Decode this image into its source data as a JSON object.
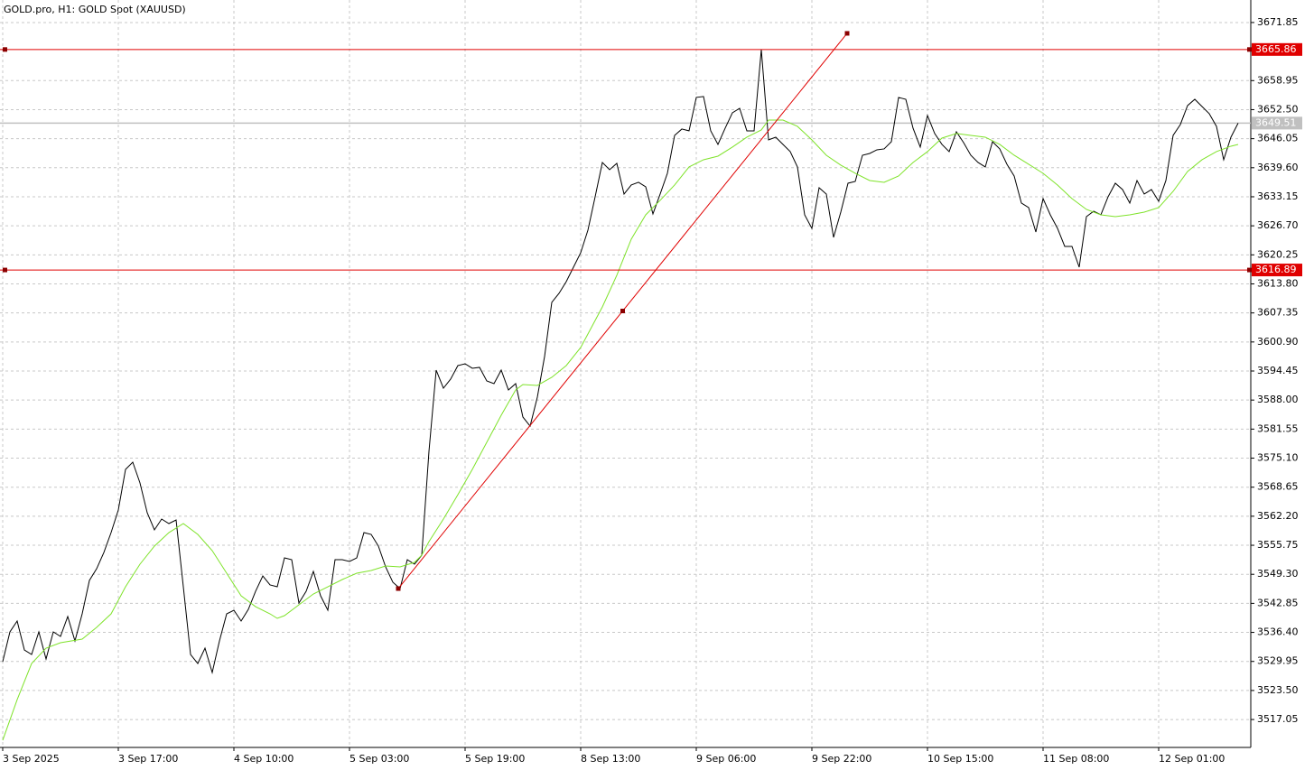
{
  "chart_data": {
    "type": "line",
    "title": "GOLD.pro, H1:  GOLD Spot (XAUUSD)",
    "x": [
      0,
      1,
      2,
      3,
      4,
      5,
      6,
      7,
      8,
      9,
      10,
      11,
      12,
      13,
      14,
      15,
      16,
      17,
      18,
      19,
      20,
      21,
      22,
      23,
      24,
      25,
      26,
      27,
      28,
      29,
      30,
      31,
      32,
      33,
      34,
      35,
      36,
      37,
      38,
      39,
      40,
      41,
      42,
      43,
      44,
      45,
      46,
      47,
      48,
      49,
      50,
      51,
      52,
      53,
      54,
      55,
      56,
      57,
      58,
      59,
      60,
      61,
      62,
      63,
      64,
      65,
      66,
      67,
      68,
      69,
      70,
      71,
      72,
      73,
      74,
      75,
      76,
      77,
      78,
      79,
      80,
      81,
      82,
      83,
      84,
      85,
      86,
      87,
      88,
      89,
      90,
      91,
      92,
      93,
      94,
      95,
      96,
      97,
      98,
      99,
      100,
      101,
      102,
      103,
      104,
      105,
      106,
      107,
      108,
      109,
      110,
      111,
      112,
      113,
      114,
      115,
      116,
      117,
      118,
      119,
      120,
      121,
      122,
      123,
      124,
      125,
      126,
      127,
      128,
      129,
      130,
      131,
      132,
      133,
      134,
      135,
      136,
      137,
      138,
      139,
      140,
      141,
      142,
      143,
      144,
      145,
      146,
      147,
      148,
      149,
      150,
      151,
      152,
      153,
      154,
      155,
      156,
      157,
      158,
      159,
      160,
      161,
      162,
      163,
      164,
      165,
      166,
      167,
      168,
      169,
      170,
      171
    ],
    "series": [
      {
        "color": "#000000",
        "values": [
          3529.89,
          3536.51,
          3538.92,
          3532.5,
          3531.5,
          3536.51,
          3530.49,
          3536.51,
          3535.51,
          3539.92,
          3534.5,
          3540.52,
          3547.94,
          3550.54,
          3554.15,
          3558.56,
          3563.58,
          3572.6,
          3574.2,
          3569.59,
          3562.98,
          3559.17,
          3561.57,
          3560.57,
          3561.37,
          3546.53,
          3531.5,
          3529.49,
          3532.9,
          3527.49,
          3534.5,
          3540.52,
          3541.32,
          3538.92,
          3541.52,
          3545.53,
          3548.94,
          3546.94,
          3546.53,
          3552.95,
          3552.55,
          3542.93,
          3545.53,
          3549.94,
          3544.53,
          3541.32,
          3552.55,
          3552.55,
          3552.15,
          3552.95,
          3558.56,
          3558.16,
          3555.56,
          3550.95,
          3547.54,
          3546.13,
          3552.55,
          3551.55,
          3553.55,
          3576.61,
          3594.65,
          3590.64,
          3592.65,
          3595.66,
          3596.06,
          3595.06,
          3595.26,
          3592.25,
          3591.65,
          3594.65,
          3590.24,
          3591.65,
          3584.23,
          3582.22,
          3588.64,
          3597.66,
          3609.69,
          3611.7,
          3614.3,
          3617.51,
          3620.72,
          3625.73,
          3633.15,
          3640.77,
          3639.17,
          3640.57,
          3633.75,
          3635.76,
          3636.36,
          3635.36,
          3629.34,
          3633.75,
          3638.36,
          3646.78,
          3648.19,
          3647.79,
          3655.21,
          3655.41,
          3647.79,
          3644.78,
          3648.39,
          3651.8,
          3652.8,
          3647.79,
          3647.79,
          3665.83,
          3645.78,
          3646.38,
          3644.78,
          3643.18,
          3639.77,
          3629.14,
          3626.13,
          3635.16,
          3633.75,
          3624.13,
          3629.74,
          3636.16,
          3636.56,
          3642.37,
          3642.77,
          3643.58,
          3643.78,
          3645.38,
          3655.21,
          3654.8,
          3648.39,
          3644.18,
          3651.2,
          3647.19,
          3644.78,
          3643.18,
          3647.59,
          3645.18,
          3642.37,
          3640.77,
          3639.77,
          3645.38,
          3643.78,
          3640.37,
          3637.76,
          3631.75,
          3630.74,
          3625.33,
          3632.75,
          3629.14,
          3626.13,
          3622.12,
          3622.12,
          3617.51,
          3628.74,
          3629.94,
          3629.14,
          3633.15,
          3636.16,
          3634.75,
          3631.75,
          3636.76,
          3633.75,
          3634.75,
          3632.15,
          3636.76,
          3646.78,
          3649.19,
          3653.4,
          3654.8,
          3653.2,
          3651.6,
          3648.79,
          3641.37,
          3646.38,
          3649.51
        ]
      },
      {
        "color": "#7fe32a",
        "x": [
          0,
          2,
          4,
          6,
          8,
          11,
          13,
          15,
          17,
          19,
          21,
          23,
          25,
          27,
          29,
          31,
          33,
          35,
          37,
          38,
          39,
          41,
          43,
          45,
          47,
          49,
          51,
          53,
          55,
          57,
          58,
          59,
          61,
          63,
          65,
          67,
          69,
          71,
          72,
          74,
          76,
          78,
          80,
          81,
          83,
          85,
          87,
          89,
          91,
          93,
          95,
          97,
          99,
          101,
          103,
          105,
          106,
          108,
          110,
          112,
          114,
          116,
          118,
          120,
          122,
          124,
          126,
          128,
          130,
          132,
          134,
          136,
          138,
          140,
          142,
          144,
          146,
          148,
          150,
          152,
          154,
          156,
          158,
          160,
          162,
          164,
          166,
          168,
          170,
          171
        ],
        "values": [
          3512.45,
          3521.47,
          3529.49,
          3532.9,
          3534.1,
          3534.91,
          3537.51,
          3540.52,
          3546.53,
          3551.55,
          3555.56,
          3558.56,
          3560.57,
          3558.16,
          3554.55,
          3549.54,
          3544.53,
          3542.12,
          3540.52,
          3539.52,
          3540.12,
          3542.52,
          3544.93,
          3546.53,
          3548.14,
          3549.54,
          3550.14,
          3551.15,
          3550.95,
          3551.95,
          3553.55,
          3556.56,
          3561.57,
          3566.99,
          3572.6,
          3578.61,
          3584.63,
          3590.24,
          3591.45,
          3591.25,
          3593.05,
          3595.66,
          3599.67,
          3602.67,
          3608.69,
          3615.71,
          3623.73,
          3629.14,
          3632.35,
          3635.76,
          3639.77,
          3641.37,
          3642.17,
          3644.18,
          3646.38,
          3647.99,
          3650.19,
          3650.19,
          3648.79,
          3645.78,
          3642.37,
          3640.17,
          3638.36,
          3636.76,
          3636.36,
          3637.76,
          3640.77,
          3643.18,
          3646.18,
          3647.19,
          3646.78,
          3646.38,
          3644.78,
          3642.37,
          3640.37,
          3638.36,
          3635.76,
          3632.75,
          3630.34,
          3629.14,
          3628.74,
          3629.14,
          3629.74,
          3630.74,
          3634.35,
          3638.76,
          3641.37,
          3643.18,
          3644.38,
          3644.78
        ]
      }
    ],
    "xlim": [
      -0.375,
      172.75
    ],
    "ylim": [
      3510.85,
      3676.85
    ],
    "xticks": [
      {
        "value": 0,
        "label": "3 Sep 2025"
      },
      {
        "value": 16,
        "label": "3 Sep 17:00"
      },
      {
        "value": 32,
        "label": "4 Sep 10:00"
      },
      {
        "value": 48,
        "label": "5 Sep 03:00"
      },
      {
        "value": 64,
        "label": "5 Sep 19:00"
      },
      {
        "value": 80,
        "label": "8 Sep 13:00"
      },
      {
        "value": 96,
        "label": "9 Sep 06:00"
      },
      {
        "value": 112,
        "label": "9 Sep 22:00"
      },
      {
        "value": 128,
        "label": "10 Sep 15:00"
      },
      {
        "value": 144,
        "label": "11 Sep 08:00"
      },
      {
        "value": 160,
        "label": "12 Sep 01:00"
      }
    ],
    "yticks": [
      3671.85,
      3658.95,
      {
        "value": 3652.5,
        "label": "3652.50"
      },
      3646.05,
      {
        "value": 3639.6,
        "label": "3639.60"
      },
      3633.15,
      {
        "value": 3626.7,
        "label": "3626.70"
      },
      3620.25,
      {
        "value": 3613.8,
        "label": "3613.80"
      },
      3607.35,
      {
        "value": 3600.9,
        "label": "3600.90"
      },
      3594.45,
      {
        "value": 3588,
        "label": "3588.00"
      },
      3581.55,
      {
        "value": 3575.1,
        "label": "3575.10"
      },
      3568.65,
      {
        "value": 3562.2,
        "label": "3562.20"
      },
      3555.75,
      {
        "value": 3549.3,
        "label": "3549.30"
      },
      3542.85,
      {
        "value": 3536.4,
        "label": "3536.40"
      },
      3529.95,
      {
        "value": 3523.5,
        "label": "3523.50"
      },
      3517.05
    ],
    "grid": true,
    "hlines": [
      {
        "value": 3665.86,
        "color": "#e00000"
      },
      {
        "value": 3616.89,
        "color": "#e00000"
      }
    ],
    "price_line": {
      "value": 3649.51,
      "color": "#c0c0c0"
    },
    "trendline": {
      "x": [
        54.75,
        116.875
      ],
      "values": [
        3546.13,
        3669.44
      ],
      "color": "#e00000"
    }
  }
}
